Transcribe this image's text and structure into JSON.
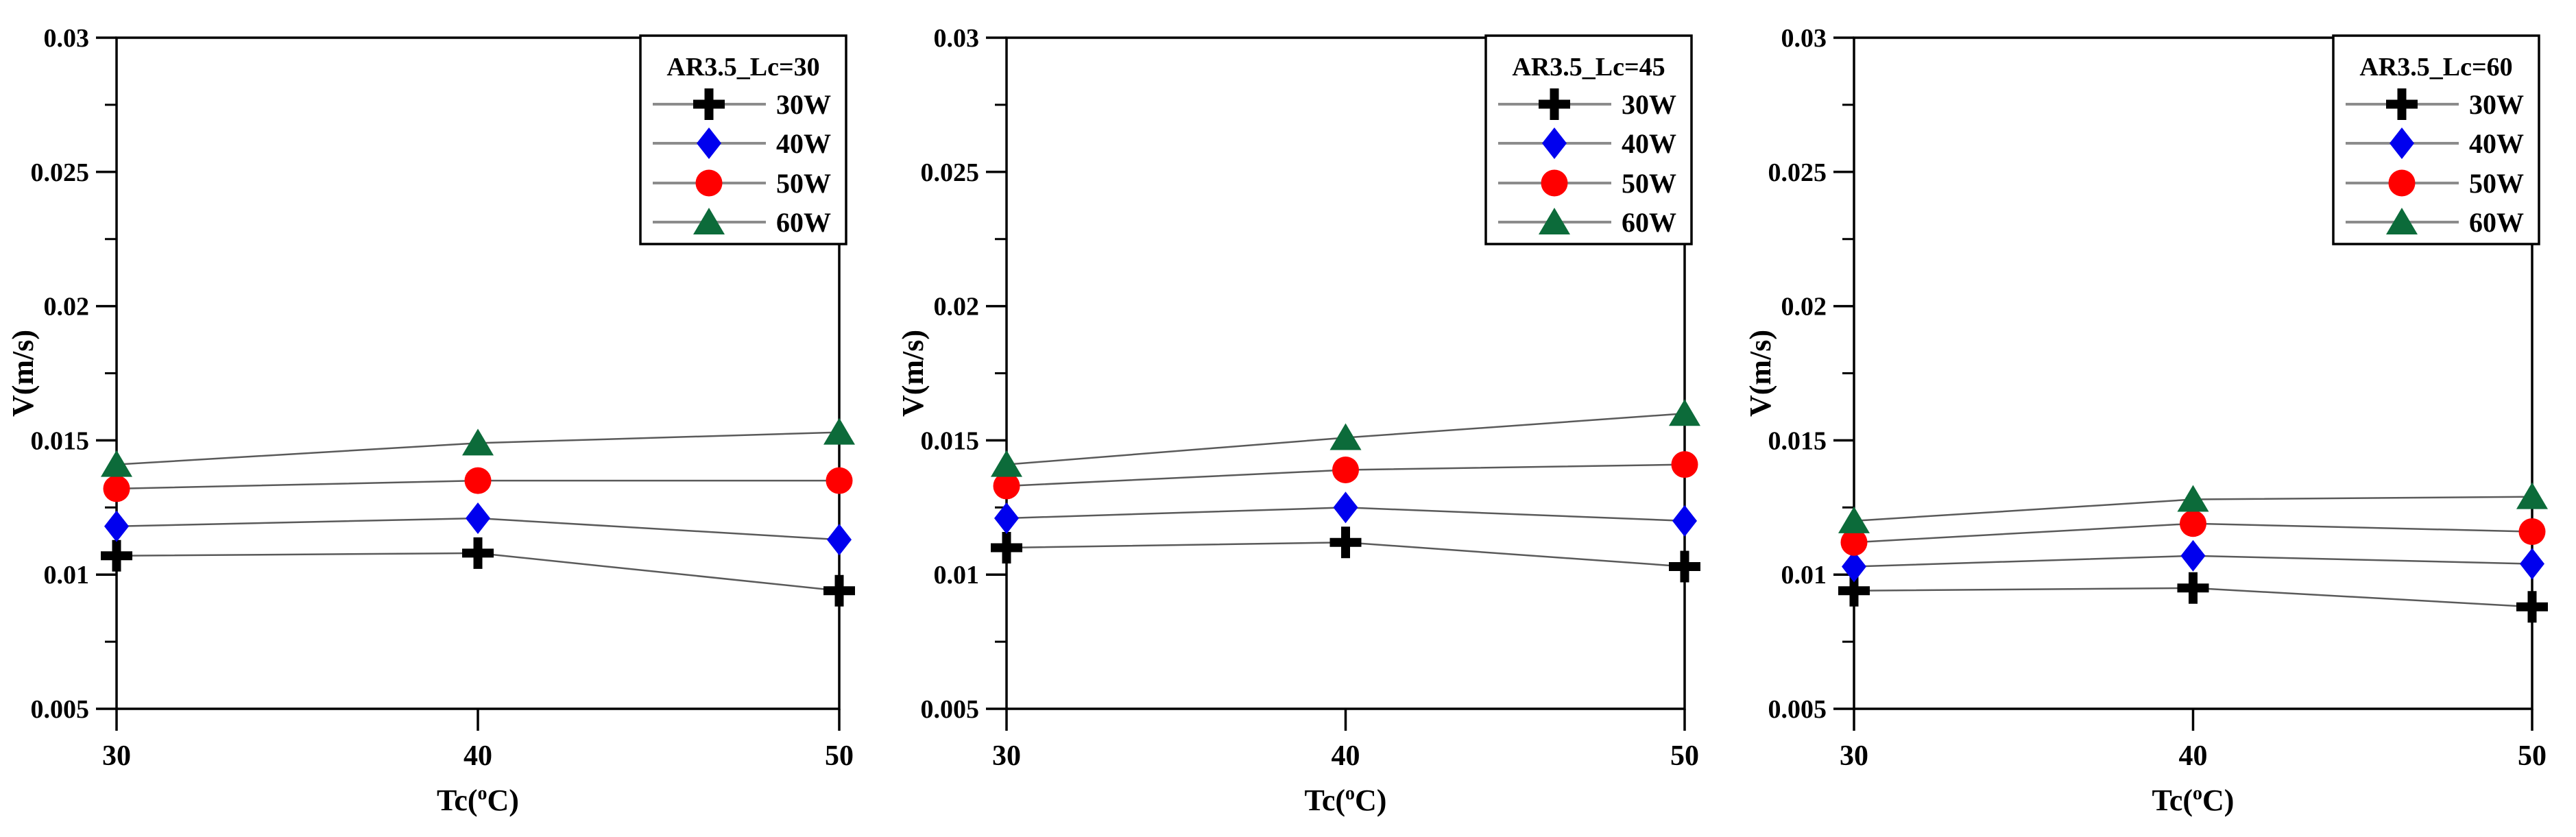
{
  "figure": {
    "background": "#ffffff",
    "axis_color": "#000000",
    "line_color": "#5a5a5a",
    "legend_line_color": "#8c8c8c",
    "ylabel": "V(m/s)",
    "xlabel_parts": {
      "pre": "Tc(",
      "sup": "o",
      "post": "C)"
    },
    "ytick_labels": [
      "0.005",
      "0.01",
      "0.015",
      "0.02",
      "0.025",
      "0.03"
    ],
    "xtick_labels": [
      "30",
      "40",
      "50"
    ]
  },
  "chart_data": [
    {
      "type": "line",
      "title": "AR3.5_Lc=30",
      "xlabel": "Tc(oC)",
      "ylabel": "V(m/s)",
      "x": [
        30,
        40,
        50
      ],
      "xlim": [
        30,
        50
      ],
      "ylim": [
        0.005,
        0.03
      ],
      "yticks_major": [
        0.005,
        0.01,
        0.015,
        0.02,
        0.025,
        0.03
      ],
      "yticks_minor": [
        0.0075,
        0.0125,
        0.0175,
        0.0225,
        0.0275
      ],
      "grid": false,
      "legend_position": "top-right",
      "legend_title": "AR3.5_Lc=30",
      "series": [
        {
          "name": "30W",
          "marker": "plus",
          "color": "#000000",
          "values": [
            0.0107,
            0.0108,
            0.0094
          ]
        },
        {
          "name": "40W",
          "marker": "diamond",
          "color": "#0000ee",
          "values": [
            0.0118,
            0.0121,
            0.0113
          ]
        },
        {
          "name": "50W",
          "marker": "circle",
          "color": "#ff0000",
          "values": [
            0.0132,
            0.0135,
            0.0135
          ]
        },
        {
          "name": "60W",
          "marker": "triangle",
          "color": "#0c6b3a",
          "values": [
            0.0141,
            0.0149,
            0.0153
          ]
        }
      ]
    },
    {
      "type": "line",
      "title": "AR3.5_Lc=45",
      "xlabel": "Tc(oC)",
      "ylabel": "V(m/s)",
      "x": [
        30,
        40,
        50
      ],
      "xlim": [
        30,
        50
      ],
      "ylim": [
        0.005,
        0.03
      ],
      "yticks_major": [
        0.005,
        0.01,
        0.015,
        0.02,
        0.025,
        0.03
      ],
      "yticks_minor": [
        0.0075,
        0.0125,
        0.0175,
        0.0225,
        0.0275
      ],
      "grid": false,
      "legend_position": "top-right",
      "legend_title": "AR3.5_Lc=45",
      "series": [
        {
          "name": "30W",
          "marker": "plus",
          "color": "#000000",
          "values": [
            0.011,
            0.0112,
            0.0103
          ]
        },
        {
          "name": "40W",
          "marker": "diamond",
          "color": "#0000ee",
          "values": [
            0.0121,
            0.0125,
            0.012
          ]
        },
        {
          "name": "50W",
          "marker": "circle",
          "color": "#ff0000",
          "values": [
            0.0133,
            0.0139,
            0.0141
          ]
        },
        {
          "name": "60W",
          "marker": "triangle",
          "color": "#0c6b3a",
          "values": [
            0.0141,
            0.0151,
            0.016
          ]
        }
      ]
    },
    {
      "type": "line",
      "title": "AR3.5_Lc=60",
      "xlabel": "Tc(oC)",
      "ylabel": "V(m/s)",
      "x": [
        30,
        40,
        50
      ],
      "xlim": [
        30,
        50
      ],
      "ylim": [
        0.005,
        0.03
      ],
      "yticks_major": [
        0.005,
        0.01,
        0.015,
        0.02,
        0.025,
        0.03
      ],
      "yticks_minor": [
        0.0075,
        0.0125,
        0.0175,
        0.0225,
        0.0275
      ],
      "grid": false,
      "legend_position": "top-right",
      "legend_title": "AR3.5_Lc=60",
      "series": [
        {
          "name": "30W",
          "marker": "plus",
          "color": "#000000",
          "values": [
            0.0094,
            0.0095,
            0.0088
          ]
        },
        {
          "name": "40W",
          "marker": "diamond",
          "color": "#0000ee",
          "values": [
            0.0103,
            0.0107,
            0.0104
          ]
        },
        {
          "name": "50W",
          "marker": "circle",
          "color": "#ff0000",
          "values": [
            0.0112,
            0.0119,
            0.0116
          ]
        },
        {
          "name": "60W",
          "marker": "triangle",
          "color": "#0c6b3a",
          "values": [
            0.012,
            0.0128,
            0.0129
          ]
        }
      ]
    }
  ]
}
